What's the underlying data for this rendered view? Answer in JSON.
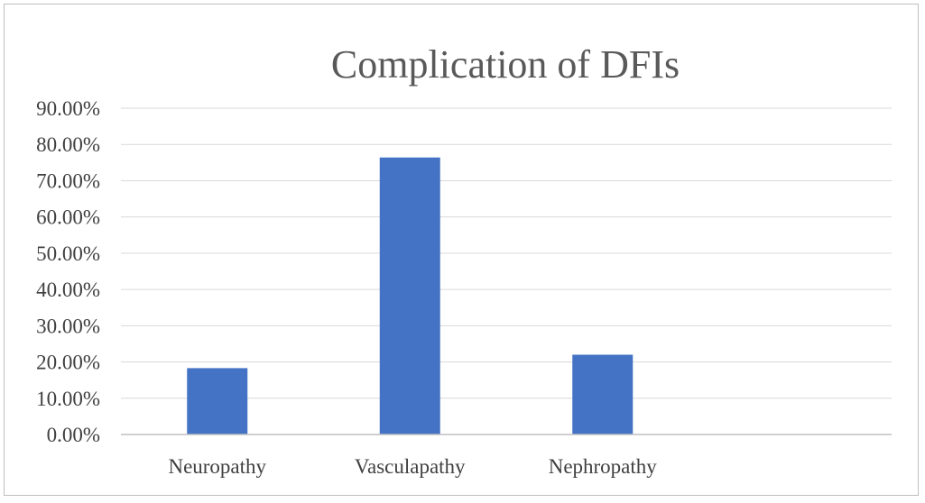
{
  "chart_data": {
    "type": "bar",
    "title": "Complication of DFIs",
    "xlabel": "",
    "ylabel": "",
    "categories": [
      "Neuropathy",
      "Vasculapathy",
      "Nephropathy"
    ],
    "values": [
      18.3,
      76.4,
      22.0
    ],
    "ylim": [
      0,
      90
    ],
    "yticks": [
      0,
      10,
      20,
      30,
      40,
      50,
      60,
      70,
      80,
      90
    ],
    "ytick_labels": [
      "0.00%",
      "10.00%",
      "20.00%",
      "30.00%",
      "40.00%",
      "50.00%",
      "60.00%",
      "70.00%",
      "80.00%",
      "90.00%"
    ],
    "grid": true,
    "legend": "none",
    "colors": {
      "bar": "#4472c4",
      "grid": "#d9d9d9",
      "axis": "#bfbfbf",
      "text": "#404040",
      "title": "#595959"
    }
  }
}
